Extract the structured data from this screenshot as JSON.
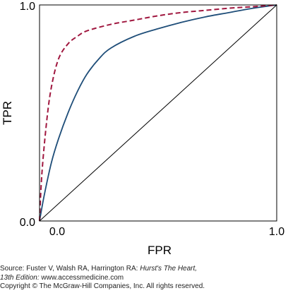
{
  "chart_data": {
    "type": "line",
    "xlabel": "FPR",
    "ylabel": "TPR",
    "xlim": [
      0,
      1
    ],
    "ylim": [
      0,
      1
    ],
    "x_ticks": [
      "0.0",
      "1.0"
    ],
    "y_ticks": [
      "0.0",
      "1.0"
    ],
    "grid": false,
    "legend": "none",
    "series": [
      {
        "style": "solid",
        "color": "#1f4e79",
        "points": [
          [
            0,
            0
          ],
          [
            0.02,
            0.12
          ],
          [
            0.05,
            0.27
          ],
          [
            0.08,
            0.38
          ],
          [
            0.12,
            0.5
          ],
          [
            0.16,
            0.6
          ],
          [
            0.2,
            0.68
          ],
          [
            0.25,
            0.75
          ],
          [
            0.3,
            0.8
          ],
          [
            0.4,
            0.855
          ],
          [
            0.5,
            0.89
          ],
          [
            0.6,
            0.92
          ],
          [
            0.7,
            0.945
          ],
          [
            0.8,
            0.965
          ],
          [
            0.9,
            0.985
          ],
          [
            1,
            1
          ]
        ]
      },
      {
        "style": "dashed",
        "color": "#a0173f",
        "points": [
          [
            0,
            0
          ],
          [
            0.01,
            0.22
          ],
          [
            0.03,
            0.46
          ],
          [
            0.05,
            0.62
          ],
          [
            0.08,
            0.75
          ],
          [
            0.12,
            0.82
          ],
          [
            0.16,
            0.855
          ],
          [
            0.2,
            0.88
          ],
          [
            0.3,
            0.91
          ],
          [
            0.4,
            0.93
          ],
          [
            0.5,
            0.95
          ],
          [
            0.6,
            0.965
          ],
          [
            0.7,
            0.975
          ],
          [
            0.8,
            0.985
          ],
          [
            0.9,
            0.992
          ],
          [
            1,
            1
          ]
        ]
      },
      {
        "style": "solid",
        "color": "#000000",
        "points": [
          [
            0,
            0
          ],
          [
            1,
            1
          ]
        ]
      }
    ]
  },
  "caption": {
    "source_prefix": "Source: Fuster V, Walsh RA, Harrington RA: ",
    "source_title": "Hurst's The Heart,",
    "edition": "13th Edition:",
    "url": " www.accessmedicine.com",
    "copyright": "Copyright © The McGraw-Hill Companies, Inc. All rights reserved."
  }
}
